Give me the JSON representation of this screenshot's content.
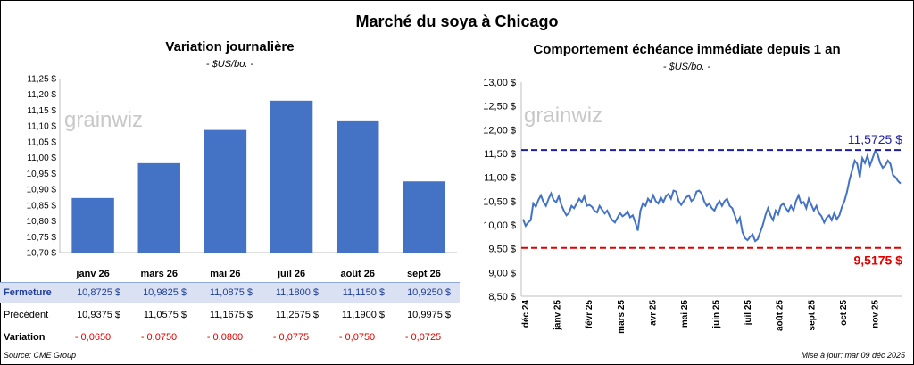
{
  "title": "Marché du soya à Chicago",
  "source": "Source: CME Group",
  "updated": "Mise à jour: mar 09 déc 2025",
  "watermark": "grainwiz",
  "left": {
    "title": "Variation journalière",
    "unit": "- $US/bo. -",
    "table": {
      "row_labels": [
        "Fermeture",
        "Précédent",
        "Variation"
      ],
      "fermeture": [
        "10,8725 $",
        "10,9825 $",
        "11,0875 $",
        "11,1800 $",
        "11,1150 $",
        "10,9250 $"
      ],
      "precedent": [
        "10,9375 $",
        "11,0575 $",
        "11,1675 $",
        "11,2575 $",
        "11,1900 $",
        "10,9975 $"
      ],
      "variation": [
        "- 0,0650",
        "- 0,0750",
        "- 0,0800",
        "- 0,0775",
        "- 0,0750",
        "- 0,0725"
      ]
    }
  },
  "right": {
    "title": "Comportement échéance immédiate depuis 1 an",
    "unit": "- $US/bo. -"
  },
  "chart_data": [
    {
      "type": "bar",
      "title": "Variation journalière",
      "categories": [
        "janv 26",
        "mars 26",
        "mai 26",
        "juil 26",
        "août 26",
        "sept 26"
      ],
      "values": [
        10.8725,
        10.9825,
        11.0875,
        11.18,
        11.115,
        10.925
      ],
      "ylim": [
        10.7,
        11.25
      ],
      "yticks": [
        "10,70 $",
        "10,75 $",
        "10,80 $",
        "10,85 $",
        "10,90 $",
        "10,95 $",
        "11,00 $",
        "11,05 $",
        "11,10 $",
        "11,15 $",
        "11,20 $",
        "11,25 $"
      ],
      "grid": false,
      "color": "#4472c4"
    },
    {
      "type": "line",
      "title": "Comportement échéance immédiate depuis 1 an",
      "ylim": [
        8.5,
        13.0
      ],
      "yticks": [
        "8,50 $",
        "9,00 $",
        "9,50 $",
        "10,00 $",
        "10,50 $",
        "11,00 $",
        "11,50 $",
        "12,00 $",
        "12,50 $",
        "13,00 $"
      ],
      "xticks": [
        "déc 24",
        "janv 25",
        "févr 25",
        "mars 25",
        "avr 25",
        "mai 25",
        "juin 25",
        "juil 25",
        "août 25",
        "sept 25",
        "oct 25",
        "nov 25"
      ],
      "series_color": "#4472c4",
      "max_line": {
        "value": 11.5725,
        "label": "11,5725 $",
        "color": "#1f1fa0"
      },
      "min_line": {
        "value": 9.5175,
        "label": "9,5175 $",
        "color": "#e00000"
      },
      "y": [
        10.12,
        9.98,
        10.05,
        10.1,
        10.45,
        10.38,
        10.52,
        10.62,
        10.48,
        10.4,
        10.55,
        10.66,
        10.52,
        10.48,
        10.6,
        10.42,
        10.3,
        10.2,
        10.25,
        10.4,
        10.35,
        10.45,
        10.55,
        10.48,
        10.6,
        10.4,
        10.42,
        10.38,
        10.3,
        10.26,
        10.4,
        10.32,
        10.24,
        10.3,
        10.18,
        10.1,
        10.05,
        10.15,
        10.25,
        10.18,
        10.22,
        10.28,
        10.16,
        10.2,
        10.05,
        9.88,
        10.3,
        10.45,
        10.4,
        10.55,
        10.48,
        10.62,
        10.5,
        10.45,
        10.58,
        10.48,
        10.6,
        10.65,
        10.55,
        10.72,
        10.7,
        10.5,
        10.42,
        10.5,
        10.58,
        10.62,
        10.5,
        10.55,
        10.7,
        10.72,
        10.66,
        10.5,
        10.4,
        10.45,
        10.35,
        10.3,
        10.42,
        10.5,
        10.4,
        10.5,
        10.55,
        10.4,
        10.35,
        10.2,
        10.05,
        10.15,
        9.85,
        9.72,
        9.68,
        9.75,
        9.8,
        9.66,
        9.7,
        9.85,
        10.0,
        10.2,
        10.35,
        10.2,
        10.1,
        10.3,
        10.22,
        10.4,
        10.45,
        10.35,
        10.28,
        10.4,
        10.3,
        10.5,
        10.62,
        10.45,
        10.48,
        10.35,
        10.55,
        10.42,
        10.3,
        10.4,
        10.25,
        10.18,
        10.05,
        10.15,
        10.2,
        10.1,
        10.25,
        10.12,
        10.2,
        10.38,
        10.5,
        10.7,
        10.95,
        11.15,
        11.35,
        11.28,
        11.0,
        11.4,
        11.3,
        11.45,
        11.25,
        11.4,
        11.55,
        11.48,
        11.3,
        11.2,
        11.25,
        11.35,
        11.28,
        11.05,
        11.0,
        10.92,
        10.87
      ]
    }
  ]
}
